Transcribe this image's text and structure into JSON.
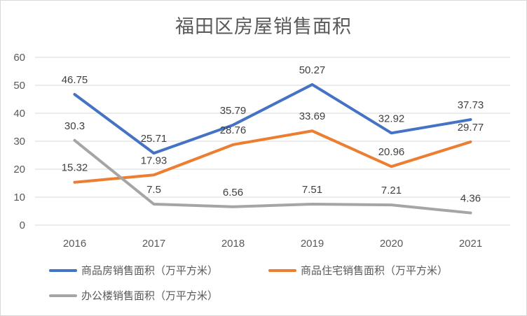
{
  "chart_data": {
    "type": "line",
    "title": "福田区房屋销售面积",
    "categories": [
      "2016",
      "2017",
      "2018",
      "2019",
      "2020",
      "2021"
    ],
    "ylim": [
      0,
      60
    ],
    "yticks": [
      "0",
      "10",
      "20",
      "30",
      "40",
      "50",
      "60"
    ],
    "grid": true,
    "legend_position": "bottom",
    "series": [
      {
        "name": "商品房销售面积（万平方米）",
        "color": "#4472c4",
        "values": [
          46.75,
          25.71,
          35.79,
          50.27,
          32.92,
          37.73
        ],
        "labels": [
          "46.75",
          "25.71",
          "35.79",
          "50.27",
          "32.92",
          "37.73"
        ]
      },
      {
        "name": "商品住宅销售面积（万平方米）",
        "color": "#ed7d31",
        "values": [
          15.32,
          17.93,
          28.76,
          33.69,
          20.96,
          29.77
        ],
        "labels": [
          "15.32",
          "17.93",
          "28.76",
          "33.69",
          "20.96",
          "29.77"
        ]
      },
      {
        "name": "办公楼销售面积（万平方米）",
        "color": "#a5a5a5",
        "values": [
          30.3,
          7.5,
          6.56,
          7.51,
          7.21,
          4.36
        ],
        "labels": [
          "30.3",
          "7.5",
          "6.56",
          "7.51",
          "7.21",
          "4.36"
        ]
      }
    ]
  }
}
